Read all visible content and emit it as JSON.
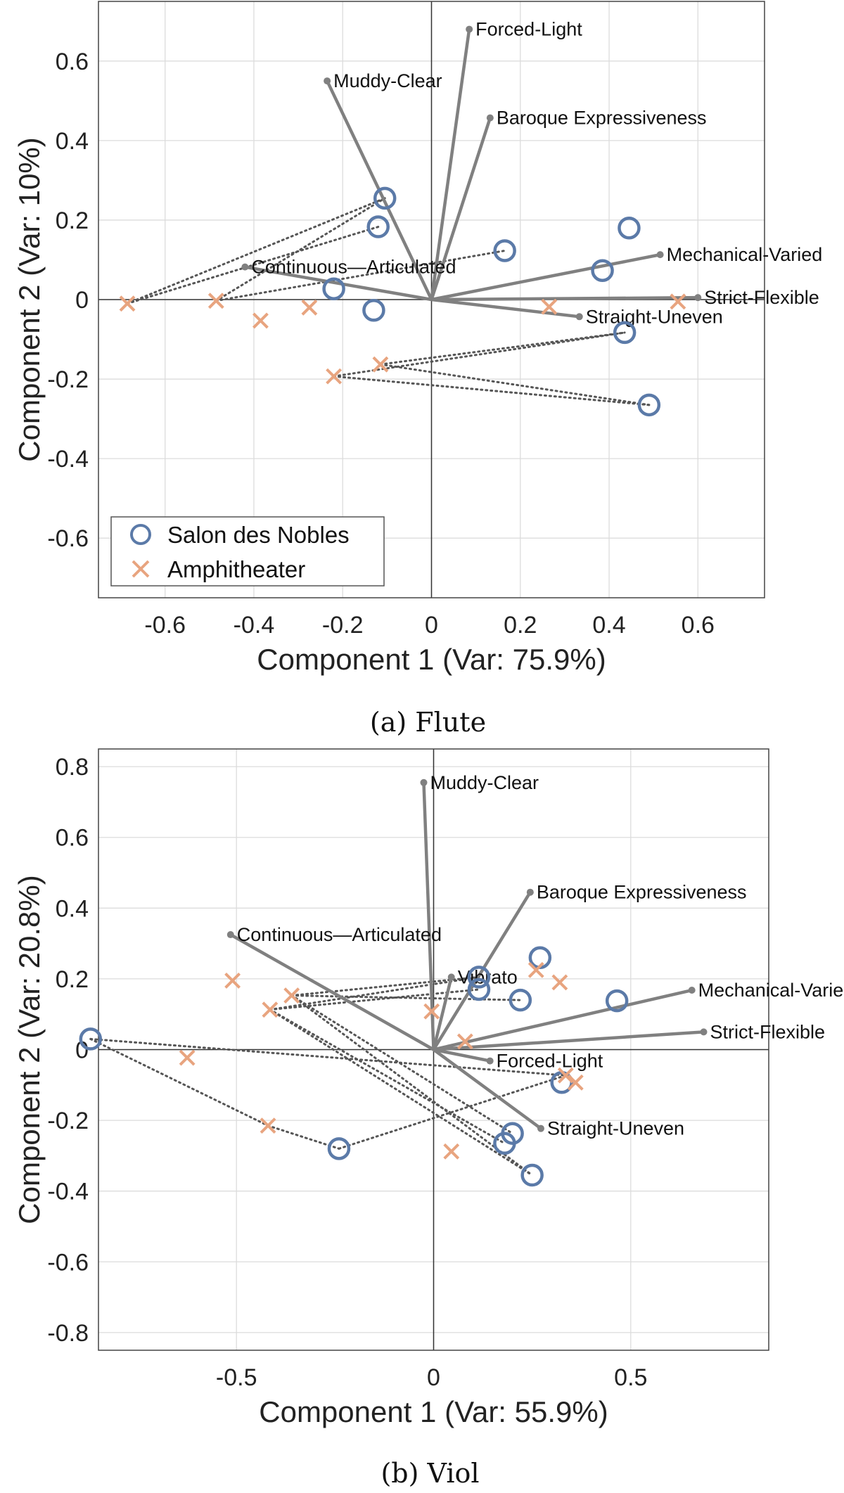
{
  "colors": {
    "salon": "#5b7aa8",
    "amphi": "#e8a47f",
    "vector": "#808080",
    "grid": "#dcdcdc",
    "link": "#555555"
  },
  "legend": {
    "salon_label": "Salon des Nobles",
    "amphi_label": "Amphitheater"
  },
  "chart_data": [
    {
      "type": "scatter",
      "subtype": "pca-biplot",
      "caption": "(a) Flute",
      "xlabel": "Component 1 (Var: 75.9%)",
      "ylabel": "Component 2 (Var: 10%)",
      "xlim": [
        -0.75,
        0.75
      ],
      "ylim": [
        -0.75,
        0.75
      ],
      "xticks": [
        -0.6,
        -0.4,
        -0.2,
        0,
        0.2,
        0.4,
        0.6
      ],
      "yticks": [
        -0.6,
        -0.4,
        -0.2,
        0,
        0.2,
        0.4,
        0.6
      ],
      "xtick_labels": [
        "-0.6",
        "-0.4",
        "-0.2",
        "0",
        "0.2",
        "0.4",
        "0.6"
      ],
      "ytick_labels": [
        "-0.6",
        "-0.4",
        "-0.2",
        "0",
        "0.2",
        "0.4",
        "0.6"
      ],
      "grid": true,
      "legend_position": "bottom-left",
      "loadings": [
        {
          "name": "Forced-Light",
          "x": 0.085,
          "y": 0.68
        },
        {
          "name": "Muddy-Clear",
          "x": -0.235,
          "y": 0.55
        },
        {
          "name": "Baroque Expressiveness",
          "x": 0.132,
          "y": 0.457
        },
        {
          "name": "Mechanical-Varied",
          "x": 0.515,
          "y": 0.113
        },
        {
          "name": "Continuous—Articulated",
          "x": -0.42,
          "y": 0.082
        },
        {
          "name": "Strict-Flexible",
          "x": 0.6,
          "y": 0.005
        },
        {
          "name": "Straight-Uneven",
          "x": 0.333,
          "y": -0.043
        }
      ],
      "series": [
        {
          "name": "Salon des Nobles",
          "marker": "circle",
          "points": [
            [
              -0.105,
              0.255
            ],
            [
              -0.12,
              0.183
            ],
            [
              -0.22,
              0.027
            ],
            [
              -0.13,
              -0.027
            ],
            [
              0.165,
              0.123
            ],
            [
              0.445,
              0.18
            ],
            [
              0.385,
              0.073
            ],
            [
              0.435,
              -0.083
            ],
            [
              0.49,
              -0.265
            ]
          ]
        },
        {
          "name": "Amphitheater",
          "marker": "x",
          "points": [
            [
              -0.685,
              -0.01
            ],
            [
              -0.485,
              -0.003
            ],
            [
              -0.385,
              -0.053
            ],
            [
              -0.275,
              -0.02
            ],
            [
              -0.22,
              -0.193
            ],
            [
              -0.115,
              -0.163
            ],
            [
              0.265,
              -0.018
            ],
            [
              0.555,
              -0.005
            ]
          ]
        }
      ],
      "links": [
        [
          [
            -0.685,
            -0.01
          ],
          [
            -0.105,
            0.255
          ]
        ],
        [
          [
            -0.685,
            -0.01
          ],
          [
            -0.12,
            0.183
          ]
        ],
        [
          [
            -0.485,
            -0.003
          ],
          [
            -0.105,
            0.255
          ]
        ],
        [
          [
            -0.485,
            -0.003
          ],
          [
            0.165,
            0.123
          ]
        ],
        [
          [
            -0.22,
            -0.193
          ],
          [
            0.435,
            -0.083
          ]
        ],
        [
          [
            -0.22,
            -0.193
          ],
          [
            0.49,
            -0.265
          ]
        ],
        [
          [
            -0.115,
            -0.163
          ],
          [
            0.435,
            -0.083
          ]
        ],
        [
          [
            -0.115,
            -0.163
          ],
          [
            0.49,
            -0.265
          ]
        ]
      ]
    },
    {
      "type": "scatter",
      "subtype": "pca-biplot",
      "caption": "(b) Viol",
      "xlabel": "Component 1 (Var: 55.9%)",
      "ylabel": "Component 2 (Var: 20.8%)",
      "xlim": [
        -0.85,
        0.85
      ],
      "ylim": [
        -0.85,
        0.85
      ],
      "xticks": [
        -0.5,
        0,
        0.5
      ],
      "yticks": [
        -0.8,
        -0.6,
        -0.4,
        -0.2,
        0,
        0.2,
        0.4,
        0.6,
        0.8
      ],
      "xtick_labels": [
        "-0.5",
        "0",
        "0.5"
      ],
      "ytick_labels": [
        "-0.8",
        "-0.6",
        "-0.4",
        "-0.2",
        "0",
        "0.2",
        "0.4",
        "0.6",
        "0.8"
      ],
      "grid": true,
      "legend_position": "none",
      "loadings": [
        {
          "name": "Muddy-Clear",
          "x": -0.025,
          "y": 0.755
        },
        {
          "name": "Baroque Expressiveness",
          "x": 0.245,
          "y": 0.445
        },
        {
          "name": "Continuous—Articulated",
          "x": -0.515,
          "y": 0.325
        },
        {
          "name": "Vibrato",
          "x": 0.045,
          "y": 0.205
        },
        {
          "name": "Mechanical-Varied",
          "x": 0.655,
          "y": 0.168
        },
        {
          "name": "Strict-Flexible",
          "x": 0.685,
          "y": 0.05
        },
        {
          "name": "Forced-Light",
          "x": 0.143,
          "y": -0.032
        },
        {
          "name": "Straight-Uneven",
          "x": 0.272,
          "y": -0.223
        }
      ],
      "series": [
        {
          "name": "Salon des Nobles",
          "marker": "circle",
          "points": [
            [
              -0.87,
              0.03
            ],
            [
              -0.24,
              -0.28
            ],
            [
              0.115,
              0.205
            ],
            [
              0.115,
              0.17
            ],
            [
              0.22,
              0.14
            ],
            [
              0.27,
              0.26
            ],
            [
              0.465,
              0.138
            ],
            [
              0.325,
              -0.093
            ],
            [
              0.2,
              -0.237
            ],
            [
              0.18,
              -0.265
            ],
            [
              0.25,
              -0.355
            ]
          ]
        },
        {
          "name": "Amphitheater",
          "marker": "x",
          "points": [
            [
              -0.625,
              -0.023
            ],
            [
              -0.51,
              0.195
            ],
            [
              -0.415,
              0.113
            ],
            [
              -0.36,
              0.153
            ],
            [
              -0.42,
              -0.215
            ],
            [
              -0.005,
              0.108
            ],
            [
              0.08,
              0.023
            ],
            [
              0.045,
              -0.288
            ],
            [
              0.26,
              0.225
            ],
            [
              0.32,
              0.19
            ],
            [
              0.335,
              -0.073
            ],
            [
              0.36,
              -0.093
            ]
          ]
        }
      ],
      "links": [
        [
          [
            -0.87,
            0.03
          ],
          [
            -0.42,
            -0.215
          ]
        ],
        [
          [
            -0.87,
            0.03
          ],
          [
            0.335,
            -0.073
          ]
        ],
        [
          [
            -0.42,
            -0.215
          ],
          [
            -0.24,
            -0.28
          ]
        ],
        [
          [
            -0.24,
            -0.28
          ],
          [
            0.335,
            -0.073
          ]
        ],
        [
          [
            -0.415,
            0.113
          ],
          [
            0.115,
            0.205
          ]
        ],
        [
          [
            -0.415,
            0.113
          ],
          [
            0.115,
            0.17
          ]
        ],
        [
          [
            -0.415,
            0.113
          ],
          [
            0.18,
            -0.265
          ]
        ],
        [
          [
            -0.415,
            0.113
          ],
          [
            0.25,
            -0.355
          ]
        ],
        [
          [
            -0.36,
            0.153
          ],
          [
            0.115,
            0.205
          ]
        ],
        [
          [
            -0.36,
            0.153
          ],
          [
            0.22,
            0.14
          ]
        ],
        [
          [
            -0.36,
            0.153
          ],
          [
            0.2,
            -0.237
          ]
        ],
        [
          [
            -0.36,
            0.153
          ],
          [
            0.25,
            -0.355
          ]
        ]
      ]
    }
  ]
}
